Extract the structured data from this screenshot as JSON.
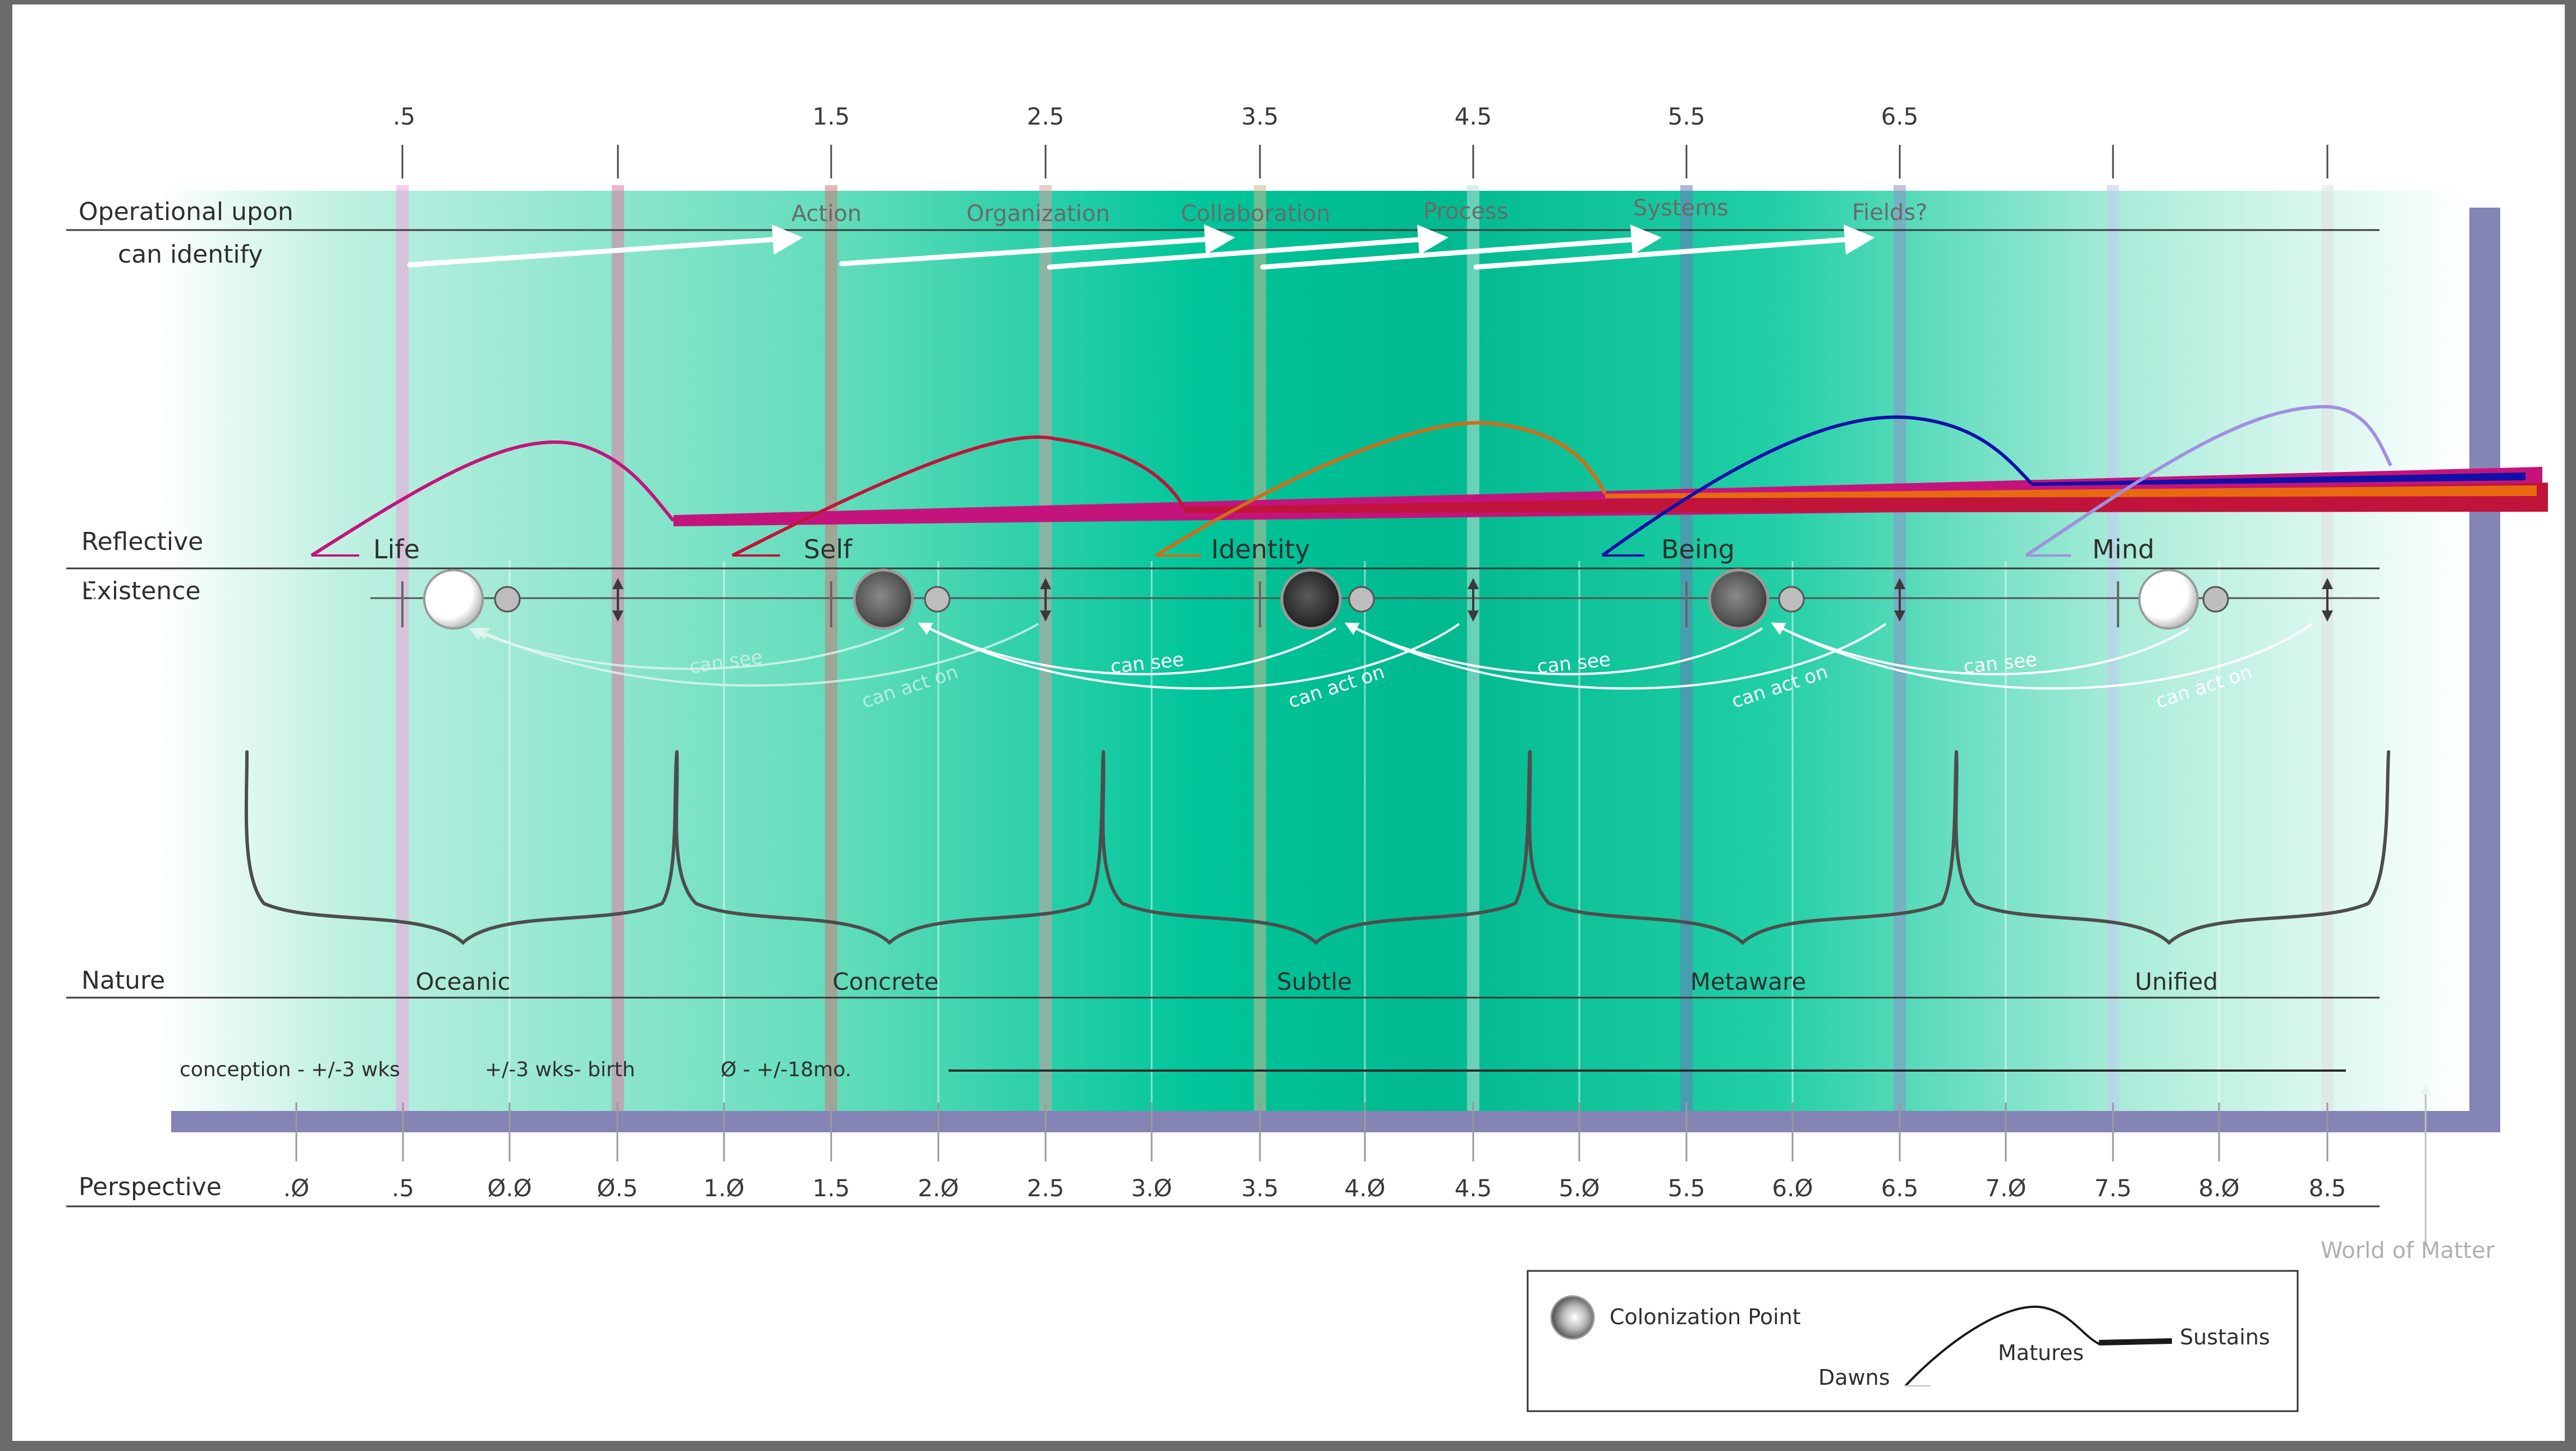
{
  "row_labels": {
    "operational": "Operational upon",
    "can_identify": "can identify",
    "reflective": "Reflective",
    "existence": "Existence",
    "nature": "Nature",
    "perspective": "Perspective"
  },
  "top_ticks": [
    ".5",
    "1.5",
    "2.5",
    "3.5",
    "4.5",
    "5.5",
    "6.5"
  ],
  "actions": [
    "Action",
    "Organization",
    "Collaboration",
    "Process",
    "Systems",
    "Fields?"
  ],
  "stages": [
    "Life",
    "Self",
    "Identity",
    "Being",
    "Mind"
  ],
  "relations": {
    "can_see": "can see",
    "can_act_on": "can act on"
  },
  "natures": [
    "Oceanic",
    "Concrete",
    "Subtle",
    "Metaware",
    "Unified"
  ],
  "timeline": {
    "a": "conception - +/-3 wks",
    "b": "+/-3 wks- birth",
    "c": "Ø - +/-18mo."
  },
  "perspective_ticks": [
    ".Ø",
    ".5",
    "Ø.Ø",
    "Ø.5",
    "1.Ø",
    "1.5",
    "2.Ø",
    "2.5",
    "3.Ø",
    "3.5",
    "4.Ø",
    "4.5",
    "5.Ø",
    "5.5",
    "6.Ø",
    "6.5",
    "7.Ø",
    "7.5",
    "8.Ø",
    "8.5"
  ],
  "world_of_matter": "World of Matter",
  "legend": {
    "colonization_point": "Colonization Point",
    "dawns": "Dawns",
    "matures": "Matures",
    "sustains": "Sustains"
  },
  "colors": {
    "teal": "#00c59a",
    "shadow": "#6f6fa8",
    "life": "#c4147c",
    "self": "#c0143a",
    "identity": "#d86a10",
    "being": "#1010a8",
    "mind": "#a090e0"
  }
}
